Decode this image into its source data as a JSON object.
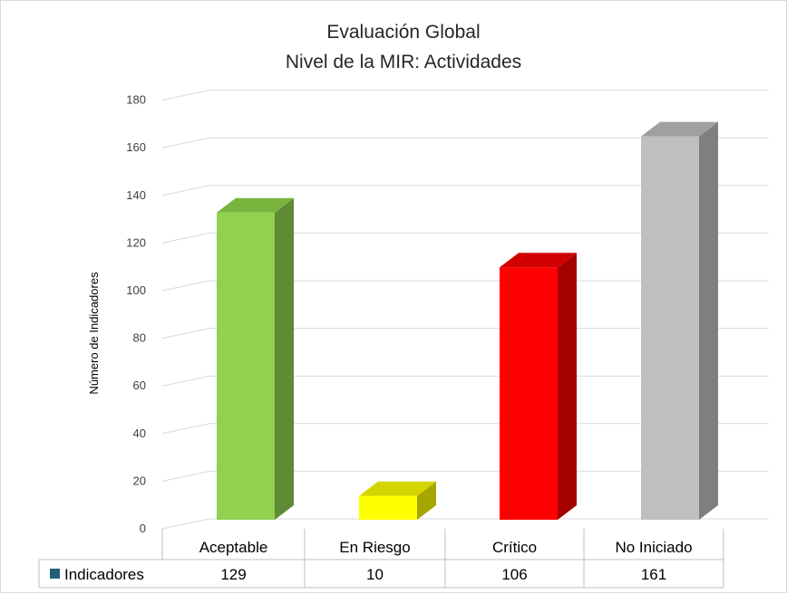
{
  "chart_data": {
    "type": "bar",
    "title": "Evaluación Global",
    "subtitle": "Nivel de la MIR: Actividades",
    "ylabel": "Número de Indicadores",
    "xlabel": "",
    "ylim": [
      0,
      180
    ],
    "ytick_step": 20,
    "grid": true,
    "categories": [
      "Aceptable",
      "En Riesgo",
      "Crítico",
      "No Iniciado"
    ],
    "series": [
      {
        "name": "Indicadores",
        "values": [
          129,
          10,
          106,
          161
        ],
        "legend_color": "#1f5f7a"
      }
    ],
    "bar_colors": [
      {
        "front": "#92d050",
        "side": "#5e8b34",
        "top": "#79b43f"
      },
      {
        "front": "#ffff00",
        "side": "#a6a600",
        "top": "#d4d400"
      },
      {
        "front": "#ff0000",
        "side": "#a50000",
        "top": "#d10000"
      },
      {
        "front": "#bfbfbf",
        "side": "#7f7f7f",
        "top": "#a0a0a0"
      }
    ],
    "data_table": true
  }
}
